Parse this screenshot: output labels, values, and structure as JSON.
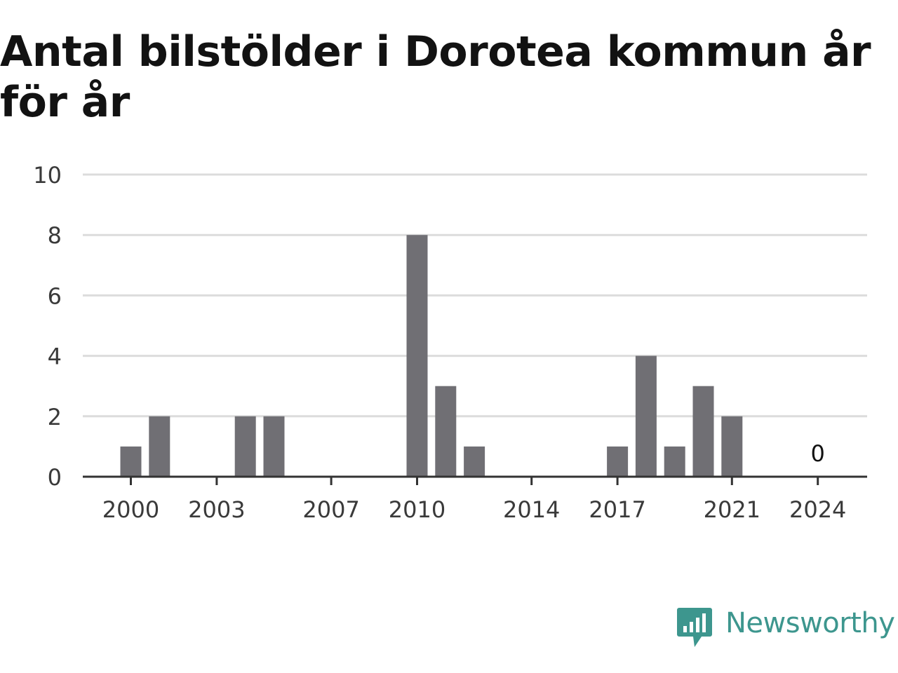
{
  "chart_data": {
    "type": "bar",
    "title": "Antal bilstölder i Dorotea kommun år för år",
    "xlabel": "",
    "ylabel": "",
    "x": [
      2000,
      2001,
      2002,
      2003,
      2004,
      2005,
      2006,
      2007,
      2008,
      2009,
      2010,
      2011,
      2012,
      2013,
      2014,
      2015,
      2016,
      2017,
      2018,
      2019,
      2020,
      2021,
      2022,
      2023,
      2024
    ],
    "values": [
      1,
      2,
      0,
      0,
      2,
      2,
      0,
      0,
      0,
      0,
      8,
      3,
      1,
      0,
      0,
      0,
      0,
      1,
      4,
      1,
      3,
      2,
      0,
      0,
      0
    ],
    "xticks": [
      "2000",
      "2003",
      "2007",
      "2010",
      "2014",
      "2017",
      "2021",
      "2024"
    ],
    "yticks": [
      "0",
      "2",
      "4",
      "6",
      "8",
      "10"
    ],
    "ylim": [
      0,
      10
    ],
    "grid": true,
    "bar_color": "#706f74",
    "annotations": [
      {
        "x": 2024,
        "text": "0"
      }
    ]
  },
  "brand": {
    "name": "Newsworthy",
    "icon": "newsworthy-logo-icon",
    "color": "#3d968e"
  }
}
